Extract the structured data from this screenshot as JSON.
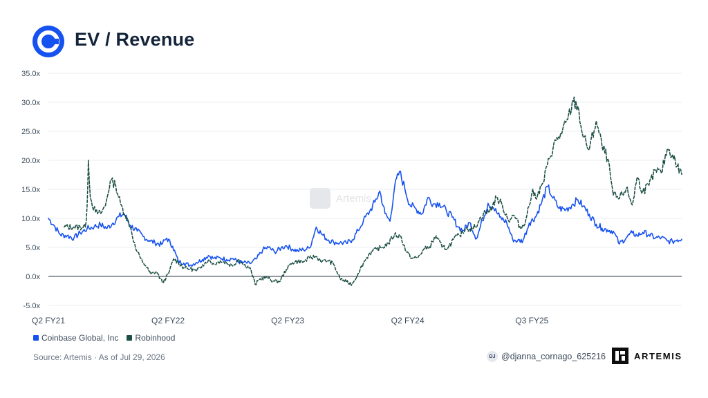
{
  "header": {
    "title": "EV / Revenue",
    "logo_icon": "coinbase-logo-icon"
  },
  "watermark": {
    "text": "Artemis"
  },
  "chart_data": {
    "type": "line",
    "title": "EV / Revenue",
    "x_ticks": [
      "Q2 FY21",
      "Q2 FY22",
      "Q2 FY23",
      "Q2 FY24",
      "Q3 FY25"
    ],
    "y_ticks": [
      "35.0x",
      "30.0x",
      "25.0x",
      "20.0x",
      "15.0x",
      "10.0x",
      "5.0x",
      "0.0x",
      "-5.0x"
    ],
    "ylim": [
      -5,
      35
    ],
    "x_range": [
      "2021-04",
      "2026-07"
    ],
    "grid": true,
    "legend_position": "bottom-left",
    "series": [
      {
        "name": "Coinbase Global, Inc",
        "color": "#1652f0",
        "style": "solid",
        "points": [
          [
            "2021-04-14",
            10.0
          ],
          [
            "2021-05-01",
            8.8
          ],
          [
            "2021-05-20",
            7.2
          ],
          [
            "2021-06-10",
            7.0
          ],
          [
            "2021-07-01",
            6.6
          ],
          [
            "2021-07-20",
            7.5
          ],
          [
            "2021-08-10",
            8.2
          ],
          [
            "2021-09-01",
            8.6
          ],
          [
            "2021-09-20",
            8.9
          ],
          [
            "2021-10-10",
            8.3
          ],
          [
            "2021-10-28",
            9.2
          ],
          [
            "2021-11-15",
            10.3
          ],
          [
            "2021-12-01",
            10.8
          ],
          [
            "2021-12-20",
            8.8
          ],
          [
            "2022-01-10",
            7.8
          ],
          [
            "2022-01-28",
            6.9
          ],
          [
            "2022-02-15",
            6.2
          ],
          [
            "2022-03-05",
            5.8
          ],
          [
            "2022-03-25",
            5.5
          ],
          [
            "2022-04-10",
            6.6
          ],
          [
            "2022-04-28",
            5.2
          ],
          [
            "2022-05-15",
            2.6
          ],
          [
            "2022-06-01",
            2.3
          ],
          [
            "2022-06-20",
            1.9
          ],
          [
            "2022-07-10",
            2.4
          ],
          [
            "2022-07-28",
            2.9
          ],
          [
            "2022-08-15",
            3.6
          ],
          [
            "2022-09-01",
            3.1
          ],
          [
            "2022-09-20",
            3.2
          ],
          [
            "2022-10-10",
            2.9
          ],
          [
            "2022-10-28",
            3.1
          ],
          [
            "2022-11-15",
            2.5
          ],
          [
            "2022-12-01",
            2.4
          ],
          [
            "2022-12-20",
            2.2
          ],
          [
            "2023-01-10",
            3.1
          ],
          [
            "2023-01-28",
            4.6
          ],
          [
            "2023-02-15",
            5.0
          ],
          [
            "2023-03-05",
            4.2
          ],
          [
            "2023-03-25",
            4.9
          ],
          [
            "2023-04-10",
            5.3
          ],
          [
            "2023-04-28",
            4.7
          ],
          [
            "2023-05-15",
            4.4
          ],
          [
            "2023-06-01",
            4.6
          ],
          [
            "2023-06-20",
            4.9
          ],
          [
            "2023-07-10",
            8.5
          ],
          [
            "2023-07-28",
            7.2
          ],
          [
            "2023-08-15",
            6.3
          ],
          [
            "2023-09-01",
            5.9
          ],
          [
            "2023-09-20",
            5.8
          ],
          [
            "2023-10-10",
            5.7
          ],
          [
            "2023-10-28",
            6.3
          ],
          [
            "2023-11-15",
            7.9
          ],
          [
            "2023-12-01",
            9.6
          ],
          [
            "2023-12-20",
            11.2
          ],
          [
            "2024-01-05",
            12.8
          ],
          [
            "2024-01-20",
            14.7
          ],
          [
            "2024-02-05",
            10.8
          ],
          [
            "2024-02-20",
            9.5
          ],
          [
            "2024-03-05",
            15.4
          ],
          [
            "2024-03-20",
            18.1
          ],
          [
            "2024-04-05",
            15.2
          ],
          [
            "2024-04-20",
            12.4
          ],
          [
            "2024-05-10",
            11.6
          ],
          [
            "2024-05-28",
            10.8
          ],
          [
            "2024-06-15",
            13.6
          ],
          [
            "2024-07-01",
            12.5
          ],
          [
            "2024-07-20",
            12.6
          ],
          [
            "2024-08-10",
            11.3
          ],
          [
            "2024-08-28",
            10.2
          ],
          [
            "2024-09-15",
            8.5
          ],
          [
            "2024-10-01",
            7.9
          ],
          [
            "2024-10-20",
            9.3
          ],
          [
            "2024-11-10",
            6.5
          ],
          [
            "2024-11-28",
            9.6
          ],
          [
            "2024-12-15",
            12.6
          ],
          [
            "2025-01-01",
            11.8
          ],
          [
            "2025-01-20",
            10.2
          ],
          [
            "2025-02-10",
            9.3
          ],
          [
            "2025-02-28",
            6.4
          ],
          [
            "2025-03-15",
            6.1
          ],
          [
            "2025-04-01",
            6.2
          ],
          [
            "2025-04-20",
            9.2
          ],
          [
            "2025-05-10",
            10.3
          ],
          [
            "2025-05-28",
            12.8
          ],
          [
            "2025-06-15",
            15.5
          ],
          [
            "2025-07-01",
            13.5
          ],
          [
            "2025-07-20",
            11.7
          ],
          [
            "2025-08-10",
            11.5
          ],
          [
            "2025-08-28",
            12.3
          ],
          [
            "2025-09-15",
            13.2
          ],
          [
            "2025-10-01",
            12.1
          ],
          [
            "2025-10-20",
            10.7
          ],
          [
            "2025-11-10",
            9.0
          ],
          [
            "2025-11-28",
            8.3
          ],
          [
            "2025-12-15",
            8.0
          ],
          [
            "2026-01-01",
            7.8
          ],
          [
            "2026-01-20",
            5.6
          ],
          [
            "2026-02-10",
            6.7
          ],
          [
            "2026-02-28",
            7.5
          ],
          [
            "2026-03-15",
            7.0
          ],
          [
            "2026-04-01",
            7.6
          ],
          [
            "2026-04-20",
            7.2
          ],
          [
            "2026-05-10",
            6.6
          ],
          [
            "2026-05-28",
            6.7
          ],
          [
            "2026-06-15",
            6.1
          ],
          [
            "2026-07-01",
            6.0
          ],
          [
            "2026-07-15",
            6.3
          ],
          [
            "2026-07-29",
            6.4
          ]
        ]
      },
      {
        "name": "Robinhood",
        "color": "#1c4f44",
        "style": "dashed",
        "points": [
          [
            "2021-06-01",
            8.5
          ],
          [
            "2021-07-01",
            8.5
          ],
          [
            "2021-08-05",
            8.5
          ],
          [
            "2021-08-10",
            12.0
          ],
          [
            "2021-08-14",
            20.0
          ],
          [
            "2021-08-20",
            13.5
          ],
          [
            "2021-09-05",
            11.0
          ],
          [
            "2021-09-20",
            10.8
          ],
          [
            "2021-10-05",
            12.2
          ],
          [
            "2021-10-20",
            16.5
          ],
          [
            "2021-11-05",
            15.8
          ],
          [
            "2021-11-20",
            12.5
          ],
          [
            "2021-12-05",
            10.5
          ],
          [
            "2021-12-20",
            8.6
          ],
          [
            "2022-01-05",
            4.8
          ],
          [
            "2022-01-20",
            3.1
          ],
          [
            "2022-02-05",
            1.8
          ],
          [
            "2022-02-20",
            0.4
          ],
          [
            "2022-03-10",
            0.8
          ],
          [
            "2022-03-28",
            -1.1
          ],
          [
            "2022-04-15",
            0.4
          ],
          [
            "2022-05-01",
            3.0
          ],
          [
            "2022-05-15",
            2.4
          ],
          [
            "2022-06-01",
            1.5
          ],
          [
            "2022-06-20",
            1.3
          ],
          [
            "2022-07-10",
            0.9
          ],
          [
            "2022-07-28",
            2.0
          ],
          [
            "2022-08-15",
            2.8
          ],
          [
            "2022-09-01",
            2.1
          ],
          [
            "2022-09-20",
            2.7
          ],
          [
            "2022-10-10",
            2.3
          ],
          [
            "2022-10-28",
            1.8
          ],
          [
            "2022-11-15",
            3.0
          ],
          [
            "2022-12-01",
            2.0
          ],
          [
            "2022-12-20",
            1.5
          ],
          [
            "2023-01-05",
            -1.4
          ],
          [
            "2023-01-20",
            -0.4
          ],
          [
            "2023-02-10",
            -0.2
          ],
          [
            "2023-03-01",
            -0.8
          ],
          [
            "2023-03-20",
            -0.9
          ],
          [
            "2023-04-10",
            1.2
          ],
          [
            "2023-04-28",
            2.4
          ],
          [
            "2023-05-15",
            2.6
          ],
          [
            "2023-06-01",
            2.5
          ],
          [
            "2023-06-20",
            3.2
          ],
          [
            "2023-07-10",
            3.4
          ],
          [
            "2023-07-28",
            2.6
          ],
          [
            "2023-08-15",
            2.7
          ],
          [
            "2023-09-01",
            2.1
          ],
          [
            "2023-09-20",
            -0.3
          ],
          [
            "2023-10-10",
            -1.0
          ],
          [
            "2023-10-28",
            -1.3
          ],
          [
            "2023-11-15",
            0.5
          ],
          [
            "2023-12-01",
            2.3
          ],
          [
            "2023-12-20",
            4.0
          ],
          [
            "2024-01-10",
            4.7
          ],
          [
            "2024-01-28",
            5.0
          ],
          [
            "2024-02-15",
            5.7
          ],
          [
            "2024-03-05",
            7.2
          ],
          [
            "2024-03-25",
            6.8
          ],
          [
            "2024-04-10",
            4.2
          ],
          [
            "2024-04-28",
            3.1
          ],
          [
            "2024-05-15",
            3.2
          ],
          [
            "2024-06-01",
            4.6
          ],
          [
            "2024-06-20",
            5.1
          ],
          [
            "2024-07-10",
            7.0
          ],
          [
            "2024-07-28",
            5.0
          ],
          [
            "2024-08-15",
            4.9
          ],
          [
            "2024-09-01",
            6.4
          ],
          [
            "2024-09-20",
            7.1
          ],
          [
            "2024-10-10",
            8.4
          ],
          [
            "2024-10-28",
            8.1
          ],
          [
            "2024-11-15",
            9.3
          ],
          [
            "2024-12-01",
            10.8
          ],
          [
            "2024-12-20",
            11.2
          ],
          [
            "2025-01-10",
            13.6
          ],
          [
            "2025-01-28",
            12.2
          ],
          [
            "2025-02-15",
            9.7
          ],
          [
            "2025-03-05",
            10.5
          ],
          [
            "2025-03-25",
            8.2
          ],
          [
            "2025-04-10",
            9.9
          ],
          [
            "2025-04-28",
            14.4
          ],
          [
            "2025-05-15",
            13.9
          ],
          [
            "2025-06-01",
            16.1
          ],
          [
            "2025-06-20",
            20.3
          ],
          [
            "2025-07-10",
            23.4
          ],
          [
            "2025-07-28",
            24.6
          ],
          [
            "2025-08-15",
            27.0
          ],
          [
            "2025-09-01",
            30.1
          ],
          [
            "2025-09-15",
            29.3
          ],
          [
            "2025-10-01",
            24.1
          ],
          [
            "2025-10-20",
            21.8
          ],
          [
            "2025-11-10",
            26.8
          ],
          [
            "2025-11-28",
            22.4
          ],
          [
            "2025-12-15",
            20.3
          ],
          [
            "2026-01-01",
            14.0
          ],
          [
            "2026-01-20",
            13.4
          ],
          [
            "2026-02-10",
            15.2
          ],
          [
            "2026-02-28",
            12.3
          ],
          [
            "2026-03-15",
            17.1
          ],
          [
            "2026-04-01",
            14.6
          ],
          [
            "2026-04-20",
            15.7
          ],
          [
            "2026-05-10",
            18.3
          ],
          [
            "2026-05-28",
            17.8
          ],
          [
            "2026-06-15",
            22.0
          ],
          [
            "2026-07-01",
            21.0
          ],
          [
            "2026-07-15",
            19.0
          ],
          [
            "2026-07-29",
            17.6
          ]
        ]
      }
    ]
  },
  "footer": {
    "source": "Source: Artemis · As of Jul 29, 2026",
    "author_initials": "DJ",
    "author_handle": "@djanna_cornago_625216",
    "brand": "ARTEMIS",
    "brand_icon": "artemis-logo-icon"
  }
}
